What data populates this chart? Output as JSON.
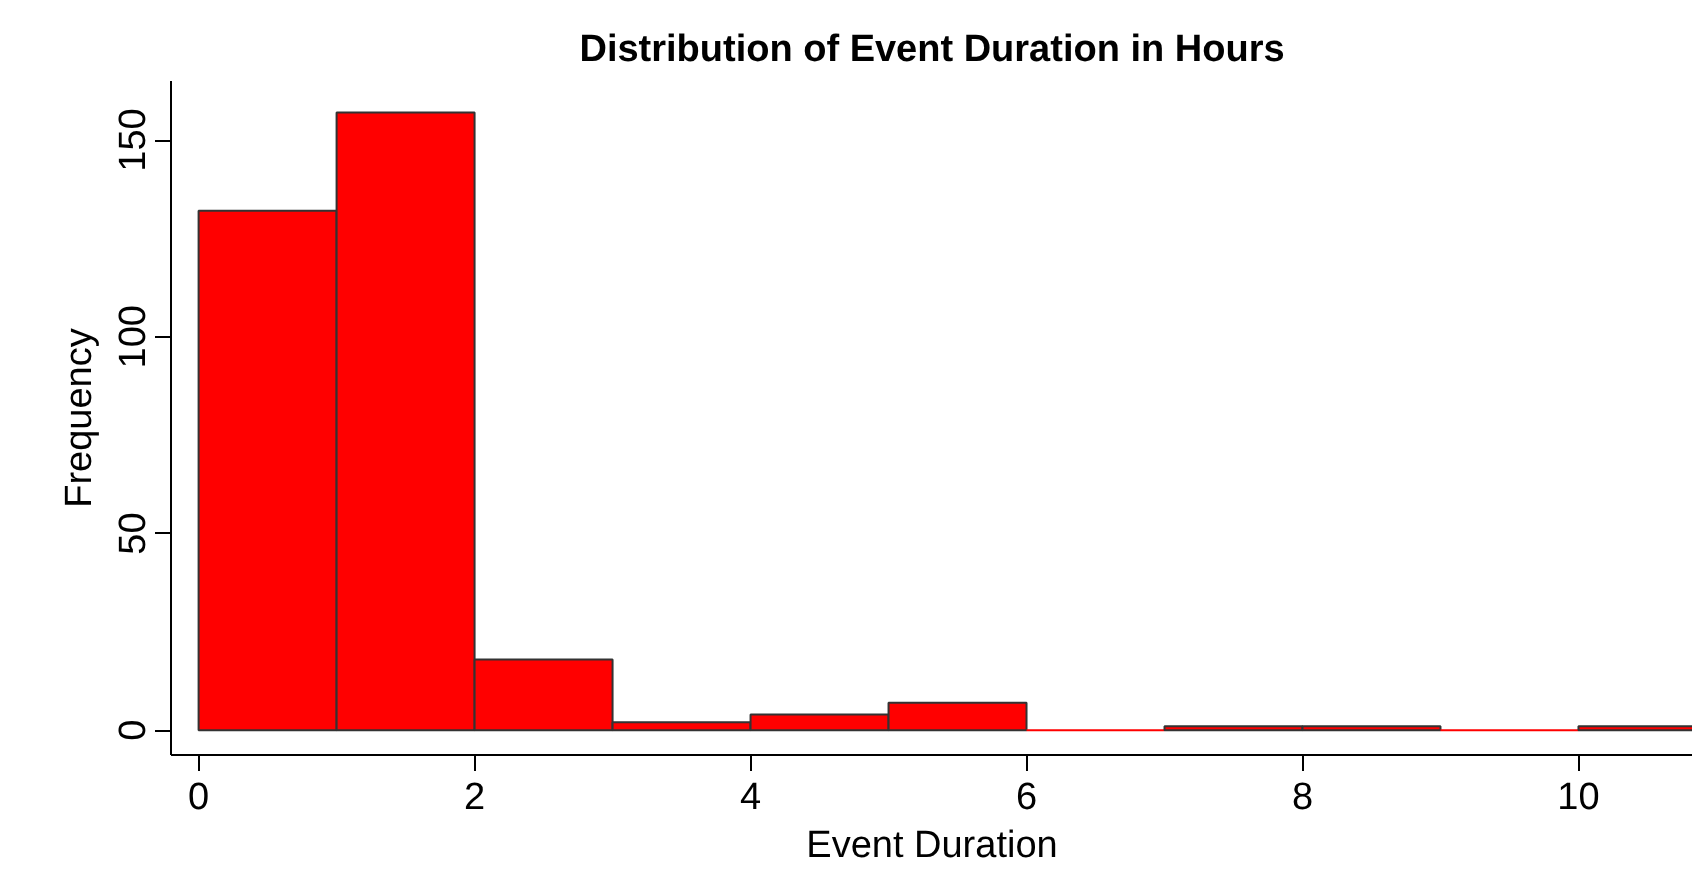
{
  "chart_data": {
    "type": "histogram",
    "title": "Distribution of Event Duration in Hours",
    "xlabel": "Event Duration",
    "ylabel": "Frequency",
    "bins": [
      0,
      1,
      2,
      3,
      4,
      5,
      6,
      7,
      8,
      9,
      10,
      11
    ],
    "values": [
      132,
      157,
      18,
      2,
      4,
      7,
      0,
      1,
      1,
      0,
      1
    ],
    "color": "#ff0000",
    "xlim": [
      -0.2,
      10.83
    ],
    "ylim": [
      -6.3,
      165
    ],
    "xticks": [
      0,
      2,
      4,
      6,
      8,
      10
    ],
    "yticks": [
      0,
      50,
      100,
      150
    ],
    "grid": false
  }
}
